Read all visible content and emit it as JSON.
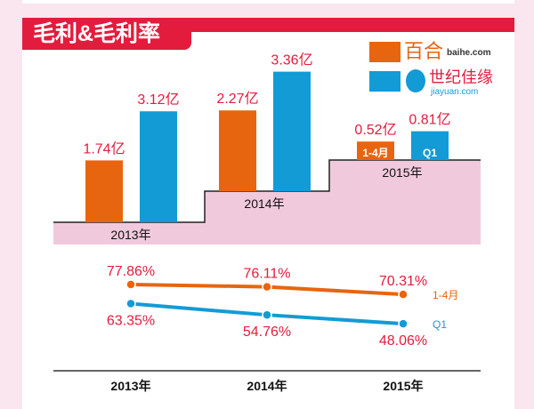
{
  "title": "毛利&毛利率",
  "legend": {
    "baihe_cn": "百合",
    "baihe_en": "baihe.com",
    "jiayuan_cn": "世纪佳缘",
    "jiayuan_en": "jiayuan.com"
  },
  "colors": {
    "baihe": "#e8650f",
    "jiayuan": "#139bd5",
    "label": "#e31c3d",
    "step": "#f1c9dd"
  },
  "chart_data": [
    {
      "type": "bar",
      "title": "毛利",
      "categories": [
        "2013年",
        "2014年",
        "2015年"
      ],
      "series": [
        {
          "name": "百合 baihe.com",
          "values": [
            1.74,
            2.27,
            0.52
          ],
          "labels": [
            "1.74亿",
            "2.27亿",
            "0.52亿"
          ]
        },
        {
          "name": "世纪佳缘 jiayuan.com",
          "values": [
            3.12,
            3.36,
            0.81
          ],
          "labels": [
            "3.12亿",
            "3.36亿",
            "0.81亿"
          ]
        }
      ],
      "bar_tags": [
        "1-4月",
        "Q1"
      ],
      "unit": "亿"
    },
    {
      "type": "line",
      "title": "毛利率",
      "categories": [
        "2013年",
        "2014年",
        "2015年"
      ],
      "series": [
        {
          "name": "百合",
          "values": [
            77.86,
            76.11,
            70.31
          ],
          "labels": [
            "77.86%",
            "76.11%",
            "70.31%"
          ],
          "end_tag": "1-4月"
        },
        {
          "name": "世纪佳缘",
          "values": [
            63.35,
            54.76,
            48.06
          ],
          "labels": [
            "63.35%",
            "54.76%",
            "48.06%"
          ],
          "end_tag": "Q1"
        }
      ]
    }
  ]
}
